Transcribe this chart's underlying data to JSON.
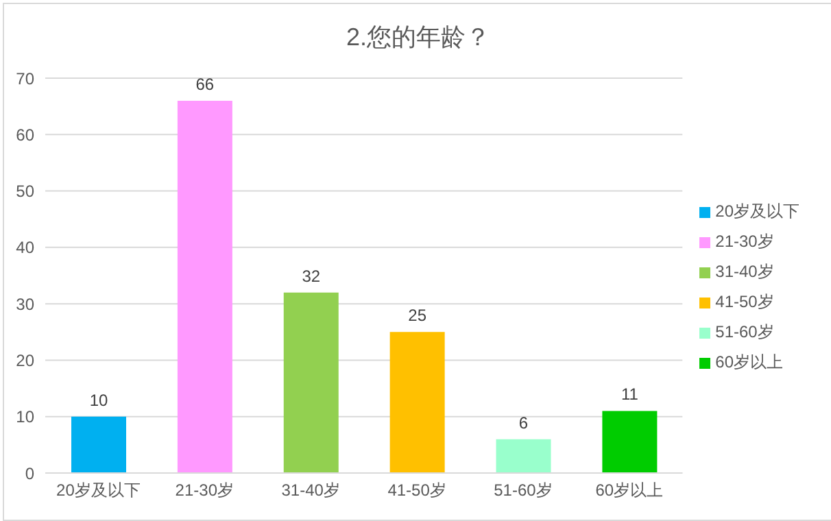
{
  "chart_data": {
    "type": "bar",
    "title": "2.您的年龄？",
    "categories": [
      "20岁及以下",
      "21-30岁",
      "31-40岁",
      "41-50岁",
      "51-60岁",
      "60岁以上"
    ],
    "series": [
      {
        "name": "20岁及以下",
        "color": "#00b0f0",
        "values": [
          10,
          null,
          null,
          null,
          null,
          null
        ]
      },
      {
        "name": "21-30岁",
        "color": "#ff99ff",
        "values": [
          null,
          66,
          null,
          null,
          null,
          null
        ]
      },
      {
        "name": "31-40岁",
        "color": "#92d050",
        "values": [
          null,
          null,
          32,
          null,
          null,
          null
        ]
      },
      {
        "name": "41-50岁",
        "color": "#ffc000",
        "values": [
          null,
          null,
          null,
          25,
          null,
          null
        ]
      },
      {
        "name": "51-60岁",
        "color": "#99ffcc",
        "values": [
          null,
          null,
          null,
          null,
          6,
          null
        ]
      },
      {
        "name": "60岁以上",
        "color": "#00cc00",
        "values": [
          null,
          null,
          null,
          null,
          null,
          11
        ]
      }
    ],
    "stacked": true,
    "ylim": [
      0,
      70
    ],
    "yticks": [
      0,
      10,
      20,
      30,
      40,
      50,
      60,
      70
    ],
    "grid": "y",
    "data_labels": true,
    "legend": "right"
  }
}
